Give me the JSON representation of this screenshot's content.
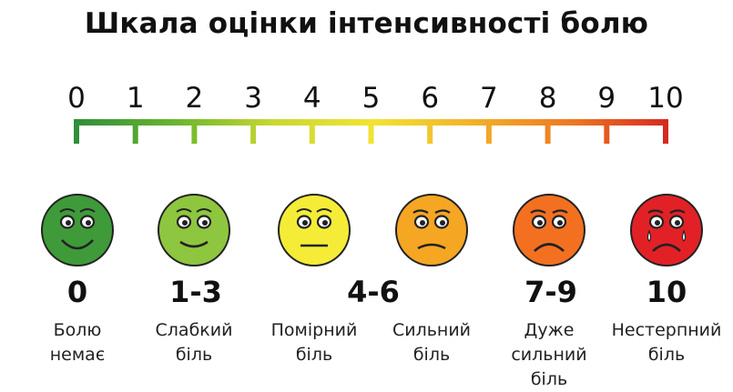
{
  "title": "Шкала оцінки інтенсивності болю",
  "scale": {
    "ticks": [
      "0",
      "1",
      "2",
      "3",
      "4",
      "5",
      "6",
      "7",
      "8",
      "9",
      "10"
    ],
    "gradient_colors": [
      "#2f8f3a",
      "#6ab52e",
      "#c8d832",
      "#f2e332",
      "#f3b22a",
      "#ee7a22",
      "#d62a20"
    ]
  },
  "levels": [
    {
      "range": "0",
      "line1": "Болю",
      "line2": "немає",
      "line3": "",
      "color": "#3f9a3a",
      "expression": "happy"
    },
    {
      "range": "1-3",
      "line1": "Слабкий",
      "line2": "біль",
      "line3": "",
      "color": "#8ec63f",
      "expression": "smile"
    },
    {
      "range": "4-6",
      "line1": "Помірний",
      "line2": "біль",
      "line3": "",
      "color": "#f4ec37",
      "expression": "neutral"
    },
    {
      "range": "",
      "line1": "Сильний",
      "line2": "біль",
      "line3": "",
      "color": "#f5a623",
      "expression": "frown"
    },
    {
      "range": "7-9",
      "line1": "Дуже",
      "line2": "сильний",
      "line3": "біль",
      "color": "#f37021",
      "expression": "sad"
    },
    {
      "range": "10",
      "line1": "Нестерпний",
      "line2": "біль",
      "line3": "",
      "color": "#e22126",
      "expression": "crying"
    }
  ]
}
